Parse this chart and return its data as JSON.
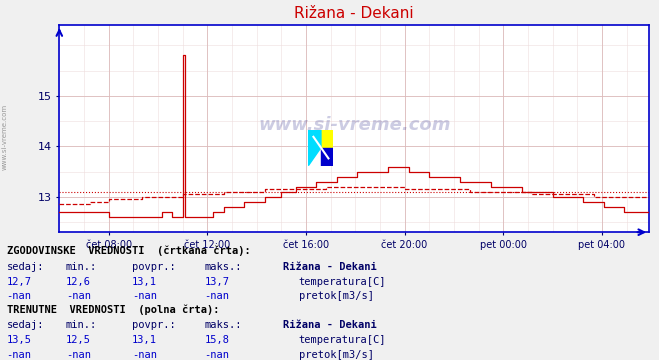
{
  "title": "Rižana - Dekani",
  "title_color": "#cc0000",
  "bg_color": "#f0f0f0",
  "plot_bg_color": "#ffffff",
  "grid_color_major": "#ddbbbb",
  "grid_color_minor": "#eedddd",
  "axis_color": "#0000cc",
  "watermark": "www.si-vreme.com",
  "left_label": "www.si-vreme.com",
  "xticklabels": [
    "čet 08:00",
    "čet 12:00",
    "čet 16:00",
    "čet 20:00",
    "pet 00:00",
    "pet 04:00"
  ],
  "xtick_positions": [
    24,
    72,
    120,
    168,
    216,
    264
  ],
  "yticks": [
    13,
    14,
    15
  ],
  "ylim": [
    12.3,
    16.4
  ],
  "xlim_max": 287,
  "n_points": 288,
  "temp_color": "#cc0000",
  "hist_avg_line": 13.1,
  "curr_avg_line": 13.1,
  "spike_index": 60,
  "spike_value": 15.8,
  "table": {
    "hist_header": "ZGODOVINSKE  VREDNOSTI  (črtkana črta):",
    "curr_header": "TRENUTNE  VREDNOSTI  (polna črta):",
    "col_headers": [
      "sedaj:",
      "min.:",
      "povpr.:",
      "maks.:",
      "Rižana - Dekani"
    ],
    "hist_temp_vals": [
      "12,7",
      "12,6",
      "13,1",
      "13,7"
    ],
    "hist_temp_label": "temperatura[C]",
    "hist_flow_vals": [
      "-nan",
      "-nan",
      "-nan",
      "-nan"
    ],
    "hist_flow_label": "pretok[m3/s]",
    "curr_temp_vals": [
      "13,5",
      "12,5",
      "13,1",
      "15,8"
    ],
    "curr_temp_label": "temperatura[C]",
    "curr_flow_vals": [
      "-nan",
      "-nan",
      "-nan",
      "-nan"
    ],
    "curr_flow_label": "pretok[m3/s]"
  },
  "temp_icon_color": "#cc0000",
  "flow_icon_color": "#00aa00",
  "text_header_color": "#000000",
  "text_col_color": "#000066",
  "text_val_color": "#0000cc",
  "text_label_color": "#000066"
}
